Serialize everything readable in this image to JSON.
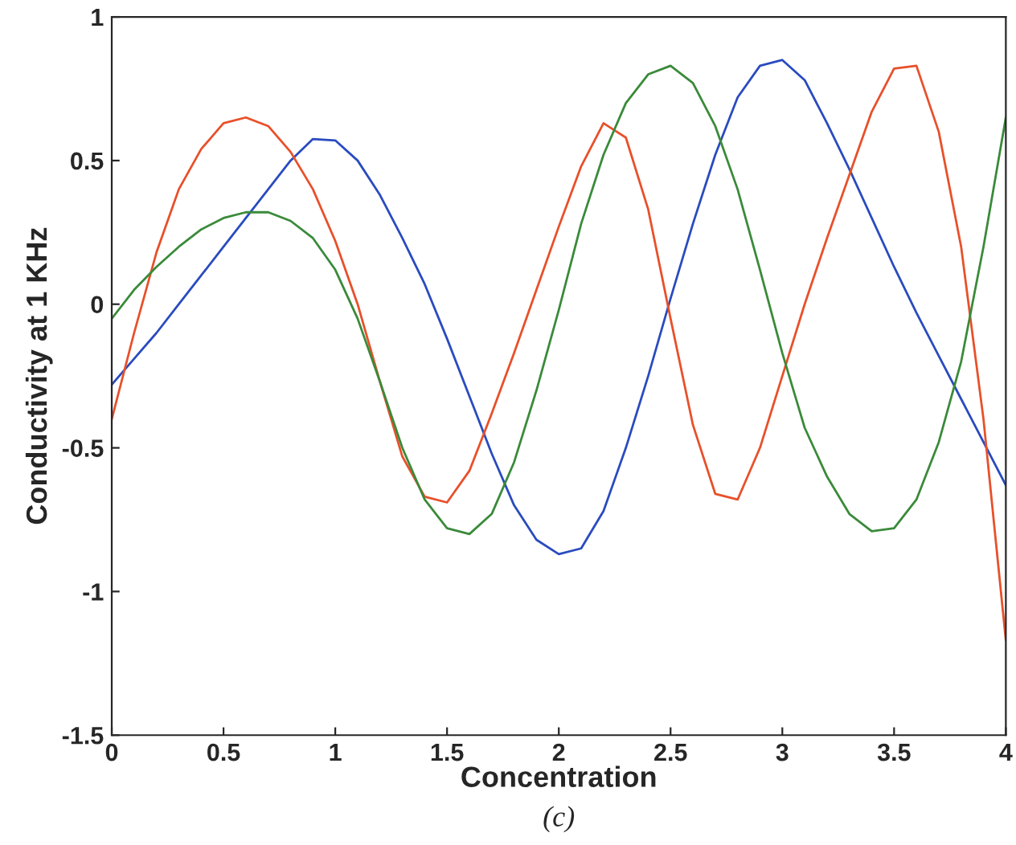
{
  "chart_data": {
    "type": "line",
    "xlabel": "Concentration",
    "ylabel": "Conductivity at 1 KHz",
    "x": [
      0,
      0.1,
      0.2,
      0.3,
      0.4,
      0.5,
      0.6,
      0.7,
      0.8,
      0.9,
      1.0,
      1.1,
      1.2,
      1.3,
      1.4,
      1.5,
      1.6,
      1.7,
      1.8,
      1.9,
      2.0,
      2.1,
      2.2,
      2.3,
      2.4,
      2.5,
      2.6,
      2.7,
      2.8,
      2.9,
      3.0,
      3.1,
      3.2,
      3.3,
      3.4,
      3.5,
      3.6,
      3.7,
      3.8,
      3.9,
      4.0
    ],
    "series": [
      {
        "color": "#2a4bbf",
        "values": [
          -0.28,
          -0.19,
          -0.1,
          0.0,
          0.1,
          0.2,
          0.3,
          0.4,
          0.5,
          0.575,
          0.57,
          0.5,
          0.38,
          0.23,
          0.07,
          -0.12,
          -0.32,
          -0.52,
          -0.7,
          -0.82,
          -0.87,
          -0.85,
          -0.72,
          -0.5,
          -0.25,
          0.02,
          0.28,
          0.52,
          0.72,
          0.83,
          0.85,
          0.78,
          0.63,
          0.47,
          0.3,
          0.13,
          -0.03,
          -0.18,
          -0.33,
          -0.48,
          -0.63
        ]
      },
      {
        "color": "#e8502a",
        "values": [
          -0.4,
          -0.1,
          0.18,
          0.4,
          0.54,
          0.63,
          0.65,
          0.62,
          0.53,
          0.4,
          0.22,
          0.0,
          -0.27,
          -0.53,
          -0.67,
          -0.69,
          -0.58,
          -0.38,
          -0.17,
          0.05,
          0.27,
          0.48,
          0.63,
          0.58,
          0.33,
          -0.05,
          -0.42,
          -0.66,
          -0.68,
          -0.5,
          -0.25,
          0.0,
          0.23,
          0.45,
          0.67,
          0.82,
          0.83,
          0.6,
          0.2,
          -0.4,
          -1.17
        ]
      },
      {
        "color": "#3a8a3a",
        "values": [
          -0.05,
          0.05,
          0.13,
          0.2,
          0.26,
          0.3,
          0.32,
          0.32,
          0.29,
          0.23,
          0.12,
          -0.05,
          -0.27,
          -0.5,
          -0.68,
          -0.78,
          -0.8,
          -0.73,
          -0.55,
          -0.3,
          -0.02,
          0.28,
          0.52,
          0.7,
          0.8,
          0.83,
          0.77,
          0.62,
          0.4,
          0.12,
          -0.17,
          -0.43,
          -0.6,
          -0.73,
          -0.79,
          -0.78,
          -0.68,
          -0.48,
          -0.2,
          0.2,
          0.65
        ]
      }
    ],
    "xlim": [
      0,
      4
    ],
    "xticks": [
      0,
      0.5,
      1,
      1.5,
      2,
      2.5,
      3,
      3.5,
      4
    ],
    "ylim": [
      -1.5,
      1
    ],
    "yticks": [
      -1.5,
      -1,
      -0.5,
      0,
      0.5,
      1
    ],
    "grid": false,
    "line_style": "solid",
    "annotations": [
      "(c)"
    ]
  }
}
